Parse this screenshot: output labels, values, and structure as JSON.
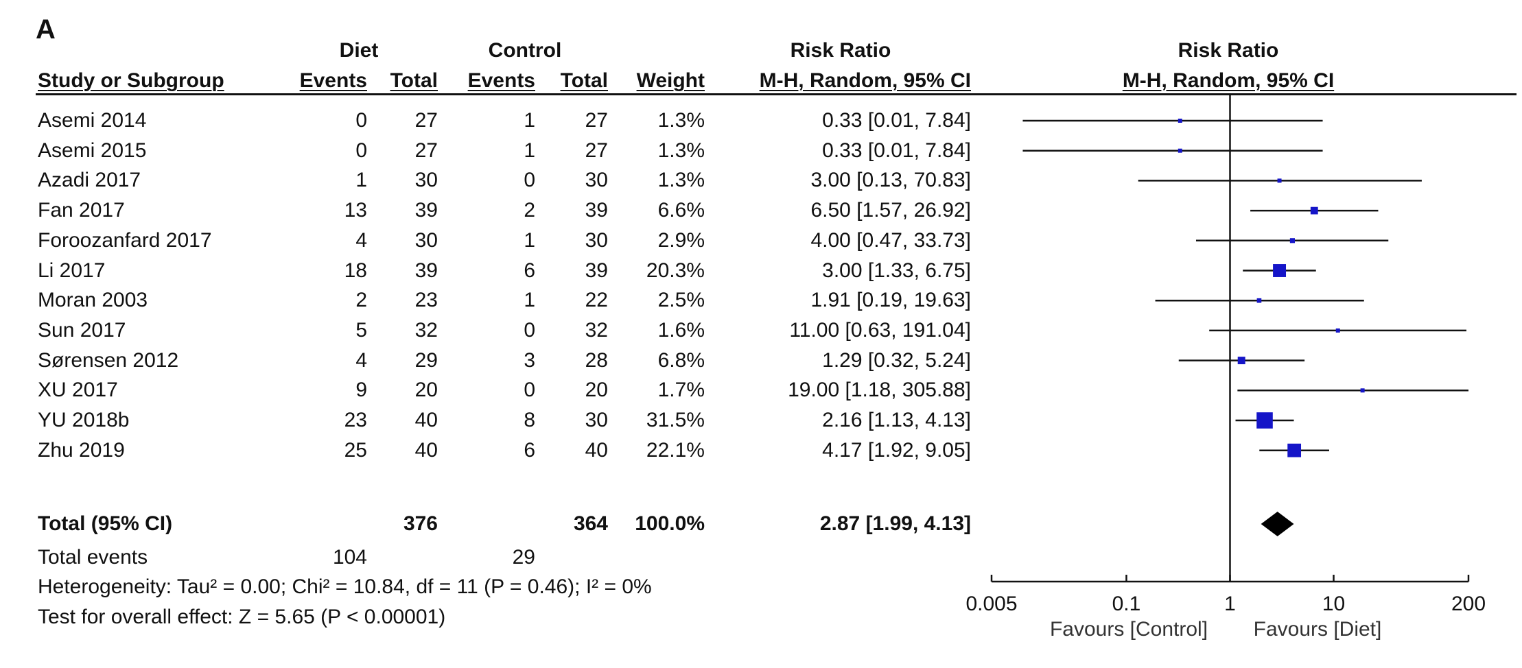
{
  "panel_label": "A",
  "header": {
    "diet_group": "Diet",
    "control_group": "Control",
    "rr_group": "Risk Ratio",
    "plot_group": "Risk Ratio",
    "study_col": "Study or Subgroup",
    "events": "Events",
    "total": "Total",
    "weight": "Weight",
    "method": "M-H, Random, 95% CI",
    "plot_method": "M-H, Random, 95% CI"
  },
  "studies": [
    {
      "name": "Asemi 2014",
      "diet_events": "0",
      "diet_total": "27",
      "ctrl_events": "1",
      "ctrl_total": "27",
      "weight": "1.3%",
      "ci_text": "0.33 [0.01, 7.84]"
    },
    {
      "name": "Asemi 2015",
      "diet_events": "0",
      "diet_total": "27",
      "ctrl_events": "1",
      "ctrl_total": "27",
      "weight": "1.3%",
      "ci_text": "0.33 [0.01, 7.84]"
    },
    {
      "name": "Azadi 2017",
      "diet_events": "1",
      "diet_total": "30",
      "ctrl_events": "0",
      "ctrl_total": "30",
      "weight": "1.3%",
      "ci_text": "3.00 [0.13, 70.83]"
    },
    {
      "name": "Fan 2017",
      "diet_events": "13",
      "diet_total": "39",
      "ctrl_events": "2",
      "ctrl_total": "39",
      "weight": "6.6%",
      "ci_text": "6.50 [1.57, 26.92]"
    },
    {
      "name": "Foroozanfard 2017",
      "diet_events": "4",
      "diet_total": "30",
      "ctrl_events": "1",
      "ctrl_total": "30",
      "weight": "2.9%",
      "ci_text": "4.00 [0.47, 33.73]"
    },
    {
      "name": "Li 2017",
      "diet_events": "18",
      "diet_total": "39",
      "ctrl_events": "6",
      "ctrl_total": "39",
      "weight": "20.3%",
      "ci_text": "3.00 [1.33, 6.75]"
    },
    {
      "name": "Moran 2003",
      "diet_events": "2",
      "diet_total": "23",
      "ctrl_events": "1",
      "ctrl_total": "22",
      "weight": "2.5%",
      "ci_text": "1.91 [0.19, 19.63]"
    },
    {
      "name": "Sun 2017",
      "diet_events": "5",
      "diet_total": "32",
      "ctrl_events": "0",
      "ctrl_total": "32",
      "weight": "1.6%",
      "ci_text": "11.00 [0.63, 191.04]"
    },
    {
      "name": "Sørensen 2012",
      "diet_events": "4",
      "diet_total": "29",
      "ctrl_events": "3",
      "ctrl_total": "28",
      "weight": "6.8%",
      "ci_text": "1.29 [0.32, 5.24]"
    },
    {
      "name": "XU 2017",
      "diet_events": "9",
      "diet_total": "20",
      "ctrl_events": "0",
      "ctrl_total": "20",
      "weight": "1.7%",
      "ci_text": "19.00 [1.18, 305.88]"
    },
    {
      "name": "YU 2018b",
      "diet_events": "23",
      "diet_total": "40",
      "ctrl_events": "8",
      "ctrl_total": "30",
      "weight": "31.5%",
      "ci_text": "2.16 [1.13, 4.13]"
    },
    {
      "name": "Zhu 2019",
      "diet_events": "25",
      "diet_total": "40",
      "ctrl_events": "6",
      "ctrl_total": "40",
      "weight": "22.1%",
      "ci_text": "4.17 [1.92, 9.05]"
    }
  ],
  "total": {
    "label": "Total (95% CI)",
    "diet_total": "376",
    "ctrl_total": "364",
    "weight": "100.0%",
    "ci_text": "2.87 [1.99, 4.13]"
  },
  "total_events": {
    "label": "Total events",
    "diet": "104",
    "control": "29"
  },
  "heterogeneity": "Heterogeneity: Tau² = 0.00; Chi² = 10.84, df = 11 (P = 0.46); I² = 0%",
  "overall_effect": "Test for overall effect: Z = 5.65 (P < 0.00001)",
  "favours_left": "Favours [Control]",
  "favours_right": "Favours [Diet]",
  "colors": {
    "study_marker": "#1515c8",
    "summary_marker": "#000000",
    "lines": "#111111"
  },
  "chart_data": {
    "type": "forest",
    "scale": "log",
    "xlim": [
      0.005,
      200
    ],
    "ticks": [
      0.005,
      0.1,
      1,
      10,
      200
    ],
    "tick_labels": [
      "0.005",
      "0.1",
      "1",
      "10",
      "200"
    ],
    "null_line": 1,
    "studies": [
      {
        "name": "Asemi 2014",
        "rr": 0.33,
        "lo": 0.01,
        "hi": 7.84,
        "weight": 1.3
      },
      {
        "name": "Asemi 2015",
        "rr": 0.33,
        "lo": 0.01,
        "hi": 7.84,
        "weight": 1.3
      },
      {
        "name": "Azadi 2017",
        "rr": 3.0,
        "lo": 0.13,
        "hi": 70.83,
        "weight": 1.3
      },
      {
        "name": "Fan 2017",
        "rr": 6.5,
        "lo": 1.57,
        "hi": 26.92,
        "weight": 6.6
      },
      {
        "name": "Foroozanfard 2017",
        "rr": 4.0,
        "lo": 0.47,
        "hi": 33.73,
        "weight": 2.9
      },
      {
        "name": "Li 2017",
        "rr": 3.0,
        "lo": 1.33,
        "hi": 6.75,
        "weight": 20.3
      },
      {
        "name": "Moran 2003",
        "rr": 1.91,
        "lo": 0.19,
        "hi": 19.63,
        "weight": 2.5
      },
      {
        "name": "Sun 2017",
        "rr": 11.0,
        "lo": 0.63,
        "hi": 191.04,
        "weight": 1.6
      },
      {
        "name": "Sørensen 2012",
        "rr": 1.29,
        "lo": 0.32,
        "hi": 5.24,
        "weight": 6.8
      },
      {
        "name": "XU 2017",
        "rr": 19.0,
        "lo": 1.18,
        "hi": 305.88,
        "weight": 1.7
      },
      {
        "name": "YU 2018b",
        "rr": 2.16,
        "lo": 1.13,
        "hi": 4.13,
        "weight": 31.5
      },
      {
        "name": "Zhu 2019",
        "rr": 4.17,
        "lo": 1.92,
        "hi": 9.05,
        "weight": 22.1
      }
    ],
    "summary": {
      "rr": 2.87,
      "lo": 1.99,
      "hi": 4.13
    }
  }
}
